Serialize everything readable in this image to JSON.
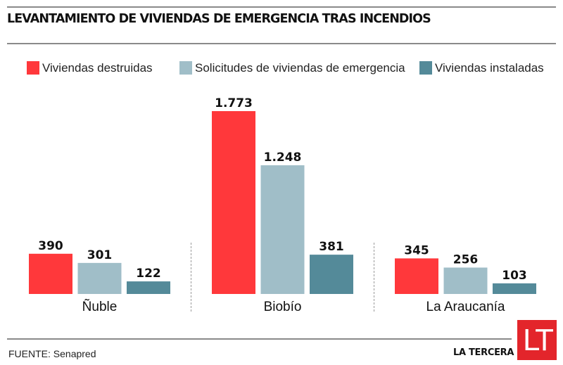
{
  "header": {
    "title": "LEVANTAMIENTO DE VIVIENDAS DE EMERGENCIA TRAS INCENDIOS"
  },
  "colors": {
    "destruidas": "#ff383b",
    "solicitudes": "#a0bec8",
    "instaladas": "#548a99",
    "logo": "#e3252b"
  },
  "chart_data": {
    "type": "bar",
    "title": "LEVANTAMIENTO DE VIVIENDAS DE EMERGENCIA TRAS INCENDIOS",
    "xlabel": "",
    "ylabel": "",
    "categories": [
      "Ñuble",
      "Biobío",
      "La Araucanía"
    ],
    "series": [
      {
        "name": "Viviendas destruidas",
        "color": "#ff383b",
        "values": [
          390,
          1773,
          345
        ],
        "labels": [
          "390",
          "1.773",
          "345"
        ]
      },
      {
        "name": "Solicitudes de viviendas de emergencia",
        "color": "#a0bec8",
        "values": [
          301,
          1248,
          256
        ],
        "labels": [
          "301",
          "1.248",
          "256"
        ]
      },
      {
        "name": "Viviendas instaladas",
        "color": "#548a99",
        "values": [
          122,
          381,
          103
        ],
        "labels": [
          "122",
          "381",
          "103"
        ]
      }
    ],
    "ylim": [
      0,
      1773
    ],
    "grid": false,
    "legend": "top"
  },
  "footer": {
    "source": "FUENTE: Senapred",
    "brand": "LA TERCERA",
    "logo_text": "LT"
  }
}
